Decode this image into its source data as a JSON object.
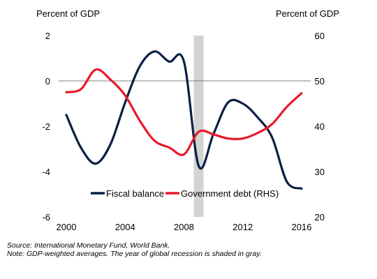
{
  "chart_data": {
    "type": "line",
    "left_axis_label": "Percent of GDP",
    "right_axis_label": "Percent of GDP",
    "left_ylim": [
      -6,
      2
    ],
    "right_ylim": [
      20,
      60
    ],
    "left_ticks": [
      "2",
      "0",
      "-2",
      "-4",
      "-6"
    ],
    "right_ticks": [
      "60",
      "50",
      "40",
      "30",
      "20"
    ],
    "xlim": [
      2000,
      2016
    ],
    "x_ticks": [
      "2000",
      "2004",
      "2008",
      "2012",
      "2016"
    ],
    "shaded_year": 2009,
    "zero_line": true,
    "series": [
      {
        "name": "Fiscal balance",
        "color": "#0b1f45",
        "axis": "left",
        "x": [
          2000,
          2001,
          2002,
          2003,
          2004,
          2005,
          2006,
          2007,
          2008,
          2009,
          2010,
          2011,
          2012,
          2013,
          2014,
          2015,
          2016
        ],
        "y": [
          -1.5,
          -2.95,
          -3.65,
          -2.8,
          -0.95,
          0.65,
          1.3,
          0.85,
          0.85,
          -3.75,
          -2.35,
          -0.95,
          -1.0,
          -1.6,
          -2.5,
          -4.45,
          -4.75
        ]
      },
      {
        "name": "Government debt (RHS)",
        "color": "#e8182c",
        "axis": "right",
        "x": [
          2000,
          2001,
          2002,
          2003,
          2004,
          2005,
          2006,
          2007,
          2008,
          2009,
          2010,
          2011,
          2012,
          2013,
          2014,
          2015,
          2016
        ],
        "y": [
          47.5,
          48.2,
          52.5,
          50.3,
          46.8,
          41.2,
          36.8,
          35.3,
          33.8,
          38.8,
          38.2,
          37.3,
          37.3,
          38.5,
          40.5,
          44.3,
          47.3
        ]
      }
    ]
  },
  "notes": {
    "source": "Source: International Monetary Fund, World Bank.",
    "note": "Note: GDP-weighted averages. The year of global recession is shaded in gray."
  }
}
